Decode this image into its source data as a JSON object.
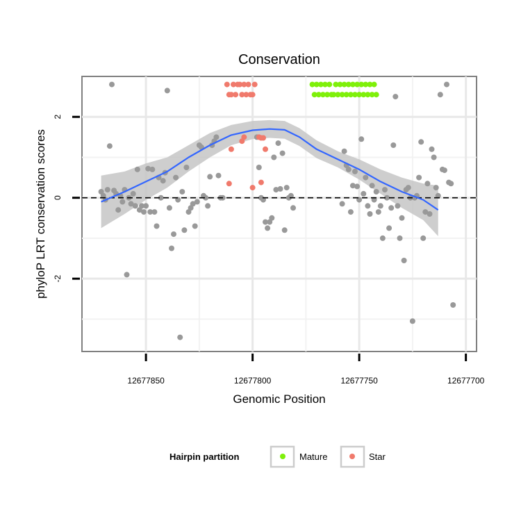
{
  "chart_data": {
    "type": "scatter",
    "title": "Conservation",
    "xlabel": "Genomic Position",
    "ylabel": "phyloP LRT conservation scores",
    "x_reversed": true,
    "xlim": [
      12677880,
      12677695
    ],
    "ylim": [
      -3.8,
      3.0
    ],
    "x_ticks": [
      12677850,
      12677800,
      12677750,
      12677700
    ],
    "x_tick_labels": [
      "12677850",
      "12677800",
      "12677750",
      "12677700"
    ],
    "y_ticks": [
      -2,
      0,
      2
    ],
    "y_tick_labels": [
      "-2",
      "0",
      "2"
    ],
    "x_minor_grid": [
      12677825,
      12677775,
      12677725
    ],
    "y_minor_grid": [
      -3,
      -1,
      1
    ],
    "reference_line": {
      "y": 0,
      "style": "dashed"
    },
    "colors": {
      "Other": "#999999",
      "Mature": "#7ff00a",
      "Star": "#f07a6c",
      "smooth": "#3366ff",
      "ribbon": "#c6c6c6"
    },
    "legend": {
      "title": "Hairpin partition",
      "position": "bottom",
      "items": [
        {
          "label": "Mature",
          "color": "#7ff00a"
        },
        {
          "label": "Star",
          "color": "#f07a6c"
        }
      ]
    },
    "smooth": {
      "x": [
        12677871,
        12677860,
        12677850,
        12677840,
        12677830,
        12677820,
        12677810,
        12677800,
        12677792,
        12677785,
        12677778,
        12677770,
        12677760,
        12677750,
        12677740,
        12677730,
        12677720,
        12677713
      ],
      "y": [
        -0.1,
        0.15,
        0.4,
        0.65,
        1.0,
        1.3,
        1.55,
        1.67,
        1.7,
        1.68,
        1.5,
        1.2,
        0.95,
        0.7,
        0.4,
        0.15,
        -0.05,
        -0.3
      ],
      "lower": [
        -0.75,
        -0.4,
        -0.05,
        0.25,
        0.65,
        1.0,
        1.3,
        1.45,
        1.48,
        1.46,
        1.28,
        0.98,
        0.75,
        0.45,
        0.1,
        -0.25,
        -0.55,
        -0.95
      ],
      "upper": [
        0.55,
        0.65,
        0.85,
        1.0,
        1.3,
        1.6,
        1.8,
        1.9,
        1.92,
        1.9,
        1.72,
        1.42,
        1.15,
        0.95,
        0.7,
        0.5,
        0.35,
        0.3
      ]
    },
    "series": [
      {
        "name": "Other",
        "points": [
          [
            12677871,
            0.15
          ],
          [
            12677870,
            0.05
          ],
          [
            12677869,
            -0.05
          ],
          [
            12677868,
            0.2
          ],
          [
            12677867,
            1.28
          ],
          [
            12677866,
            2.8
          ],
          [
            12677865,
            0.18
          ],
          [
            12677864,
            0.1
          ],
          [
            12677863,
            -0.3
          ],
          [
            12677862,
            0.05
          ],
          [
            12677861,
            -0.1
          ],
          [
            12677860,
            0.2
          ],
          [
            12677859,
            -1.9
          ],
          [
            12677858,
            0.0
          ],
          [
            12677857,
            -0.15
          ],
          [
            12677856,
            0.1
          ],
          [
            12677855,
            -0.2
          ],
          [
            12677854,
            0.7
          ],
          [
            12677853,
            -0.3
          ],
          [
            12677852,
            -0.2
          ],
          [
            12677851,
            -0.35
          ],
          [
            12677850,
            -0.2
          ],
          [
            12677849,
            0.72
          ],
          [
            12677848,
            -0.35
          ],
          [
            12677847,
            0.7
          ],
          [
            12677846,
            -0.35
          ],
          [
            12677845,
            -0.7
          ],
          [
            12677844,
            0.5
          ],
          [
            12677843,
            0.0
          ],
          [
            12677842,
            0.42
          ],
          [
            12677841,
            0.62
          ],
          [
            12677840,
            2.65
          ],
          [
            12677839,
            -0.25
          ],
          [
            12677838,
            -1.25
          ],
          [
            12677837,
            -0.9
          ],
          [
            12677836,
            0.5
          ],
          [
            12677835,
            -0.05
          ],
          [
            12677834,
            -3.45
          ],
          [
            12677833,
            0.15
          ],
          [
            12677832,
            -0.8
          ],
          [
            12677831,
            0.75
          ],
          [
            12677830,
            -0.35
          ],
          [
            12677829,
            -0.25
          ],
          [
            12677828,
            -0.15
          ],
          [
            12677827,
            -0.7
          ],
          [
            12677826,
            -0.1
          ],
          [
            12677825,
            1.3
          ],
          [
            12677824,
            1.25
          ],
          [
            12677823,
            0.05
          ],
          [
            12677822,
            0.0
          ],
          [
            12677821,
            -0.2
          ],
          [
            12677820,
            0.52
          ],
          [
            12677819,
            1.3
          ],
          [
            12677818,
            1.4
          ],
          [
            12677817,
            1.5
          ],
          [
            12677816,
            0.55
          ],
          [
            12677815,
            0.0
          ],
          [
            12677814,
            0.0
          ],
          [
            12677798,
            1.5
          ],
          [
            12677797,
            0.75
          ],
          [
            12677796,
            0.0
          ],
          [
            12677795,
            -0.05
          ],
          [
            12677794,
            -0.6
          ],
          [
            12677793,
            -0.75
          ],
          [
            12677792,
            -0.6
          ],
          [
            12677791,
            -0.5
          ],
          [
            12677790,
            1.0
          ],
          [
            12677789,
            0.2
          ],
          [
            12677788,
            1.35
          ],
          [
            12677787,
            0.22
          ],
          [
            12677786,
            1.1
          ],
          [
            12677785,
            -0.8
          ],
          [
            12677784,
            0.25
          ],
          [
            12677783,
            0.0
          ],
          [
            12677782,
            0.05
          ],
          [
            12677781,
            -0.25
          ],
          [
            12677758,
            -0.15
          ],
          [
            12677757,
            1.15
          ],
          [
            12677756,
            0.8
          ],
          [
            12677755,
            0.7
          ],
          [
            12677754,
            -0.35
          ],
          [
            12677753,
            0.3
          ],
          [
            12677752,
            0.65
          ],
          [
            12677751,
            0.28
          ],
          [
            12677750,
            -0.05
          ],
          [
            12677749,
            1.45
          ],
          [
            12677748,
            0.1
          ],
          [
            12677747,
            0.5
          ],
          [
            12677746,
            -0.2
          ],
          [
            12677745,
            -0.4
          ],
          [
            12677744,
            0.3
          ],
          [
            12677743,
            -0.05
          ],
          [
            12677742,
            0.15
          ],
          [
            12677741,
            -0.35
          ],
          [
            12677740,
            -0.2
          ],
          [
            12677739,
            -1.0
          ],
          [
            12677738,
            0.2
          ],
          [
            12677737,
            0.0
          ],
          [
            12677736,
            -0.75
          ],
          [
            12677735,
            -0.25
          ],
          [
            12677734,
            1.3
          ],
          [
            12677733,
            2.5
          ],
          [
            12677732,
            -0.2
          ],
          [
            12677731,
            -1.0
          ],
          [
            12677730,
            -0.5
          ],
          [
            12677729,
            -1.55
          ],
          [
            12677728,
            0.2
          ],
          [
            12677727,
            0.25
          ],
          [
            12677726,
            0.0
          ],
          [
            12677725,
            -3.05
          ],
          [
            12677724,
            0.0
          ],
          [
            12677723,
            0.05
          ],
          [
            12677722,
            0.5
          ],
          [
            12677721,
            1.38
          ],
          [
            12677720,
            -1.0
          ],
          [
            12677719,
            -0.35
          ],
          [
            12677718,
            0.35
          ],
          [
            12677717,
            -0.4
          ],
          [
            12677716,
            1.2
          ],
          [
            12677715,
            1.0
          ],
          [
            12677714,
            0.25
          ],
          [
            12677713,
            0.05
          ],
          [
            12677712,
            2.55
          ],
          [
            12677711,
            0.7
          ],
          [
            12677710,
            0.68
          ],
          [
            12677709,
            2.8
          ],
          [
            12677708,
            0.38
          ],
          [
            12677707,
            0.35
          ],
          [
            12677706,
            -2.65
          ]
        ]
      },
      {
        "name": "Star",
        "points": [
          [
            12677812,
            2.8
          ],
          [
            12677811,
            2.55
          ],
          [
            12677810,
            2.55
          ],
          [
            12677809,
            2.8
          ],
          [
            12677808,
            2.55
          ],
          [
            12677807,
            2.8
          ],
          [
            12677806,
            2.8
          ],
          [
            12677805,
            2.55
          ],
          [
            12677804,
            2.8
          ],
          [
            12677803,
            2.55
          ],
          [
            12677802,
            2.8
          ],
          [
            12677801,
            2.55
          ],
          [
            12677800,
            2.55
          ],
          [
            12677799,
            2.8
          ],
          [
            12677811,
            0.35
          ],
          [
            12677810,
            1.2
          ],
          [
            12677805,
            1.4
          ],
          [
            12677804,
            1.5
          ],
          [
            12677800,
            0.25
          ],
          [
            12677797,
            1.5
          ],
          [
            12677796,
            0.38
          ],
          [
            12677794,
            1.2
          ],
          [
            12677796,
            1.48
          ],
          [
            12677795,
            1.48
          ]
        ]
      },
      {
        "name": "Mature",
        "points": [
          [
            12677772,
            2.8
          ],
          [
            12677771,
            2.55
          ],
          [
            12677770,
            2.8
          ],
          [
            12677769,
            2.55
          ],
          [
            12677768,
            2.8
          ],
          [
            12677767,
            2.55
          ],
          [
            12677766,
            2.8
          ],
          [
            12677765,
            2.55
          ],
          [
            12677764,
            2.8
          ],
          [
            12677763,
            2.55
          ],
          [
            12677762,
            2.55
          ],
          [
            12677761,
            2.8
          ],
          [
            12677760,
            2.55
          ],
          [
            12677759,
            2.8
          ],
          [
            12677758,
            2.55
          ],
          [
            12677757,
            2.8
          ],
          [
            12677756,
            2.55
          ],
          [
            12677755,
            2.8
          ],
          [
            12677754,
            2.55
          ],
          [
            12677753,
            2.8
          ],
          [
            12677752,
            2.55
          ],
          [
            12677751,
            2.8
          ],
          [
            12677750,
            2.55
          ],
          [
            12677749,
            2.8
          ],
          [
            12677748,
            2.55
          ],
          [
            12677747,
            2.8
          ],
          [
            12677746,
            2.55
          ],
          [
            12677745,
            2.8
          ],
          [
            12677744,
            2.55
          ],
          [
            12677743,
            2.8
          ],
          [
            12677742,
            2.55
          ]
        ]
      }
    ]
  }
}
